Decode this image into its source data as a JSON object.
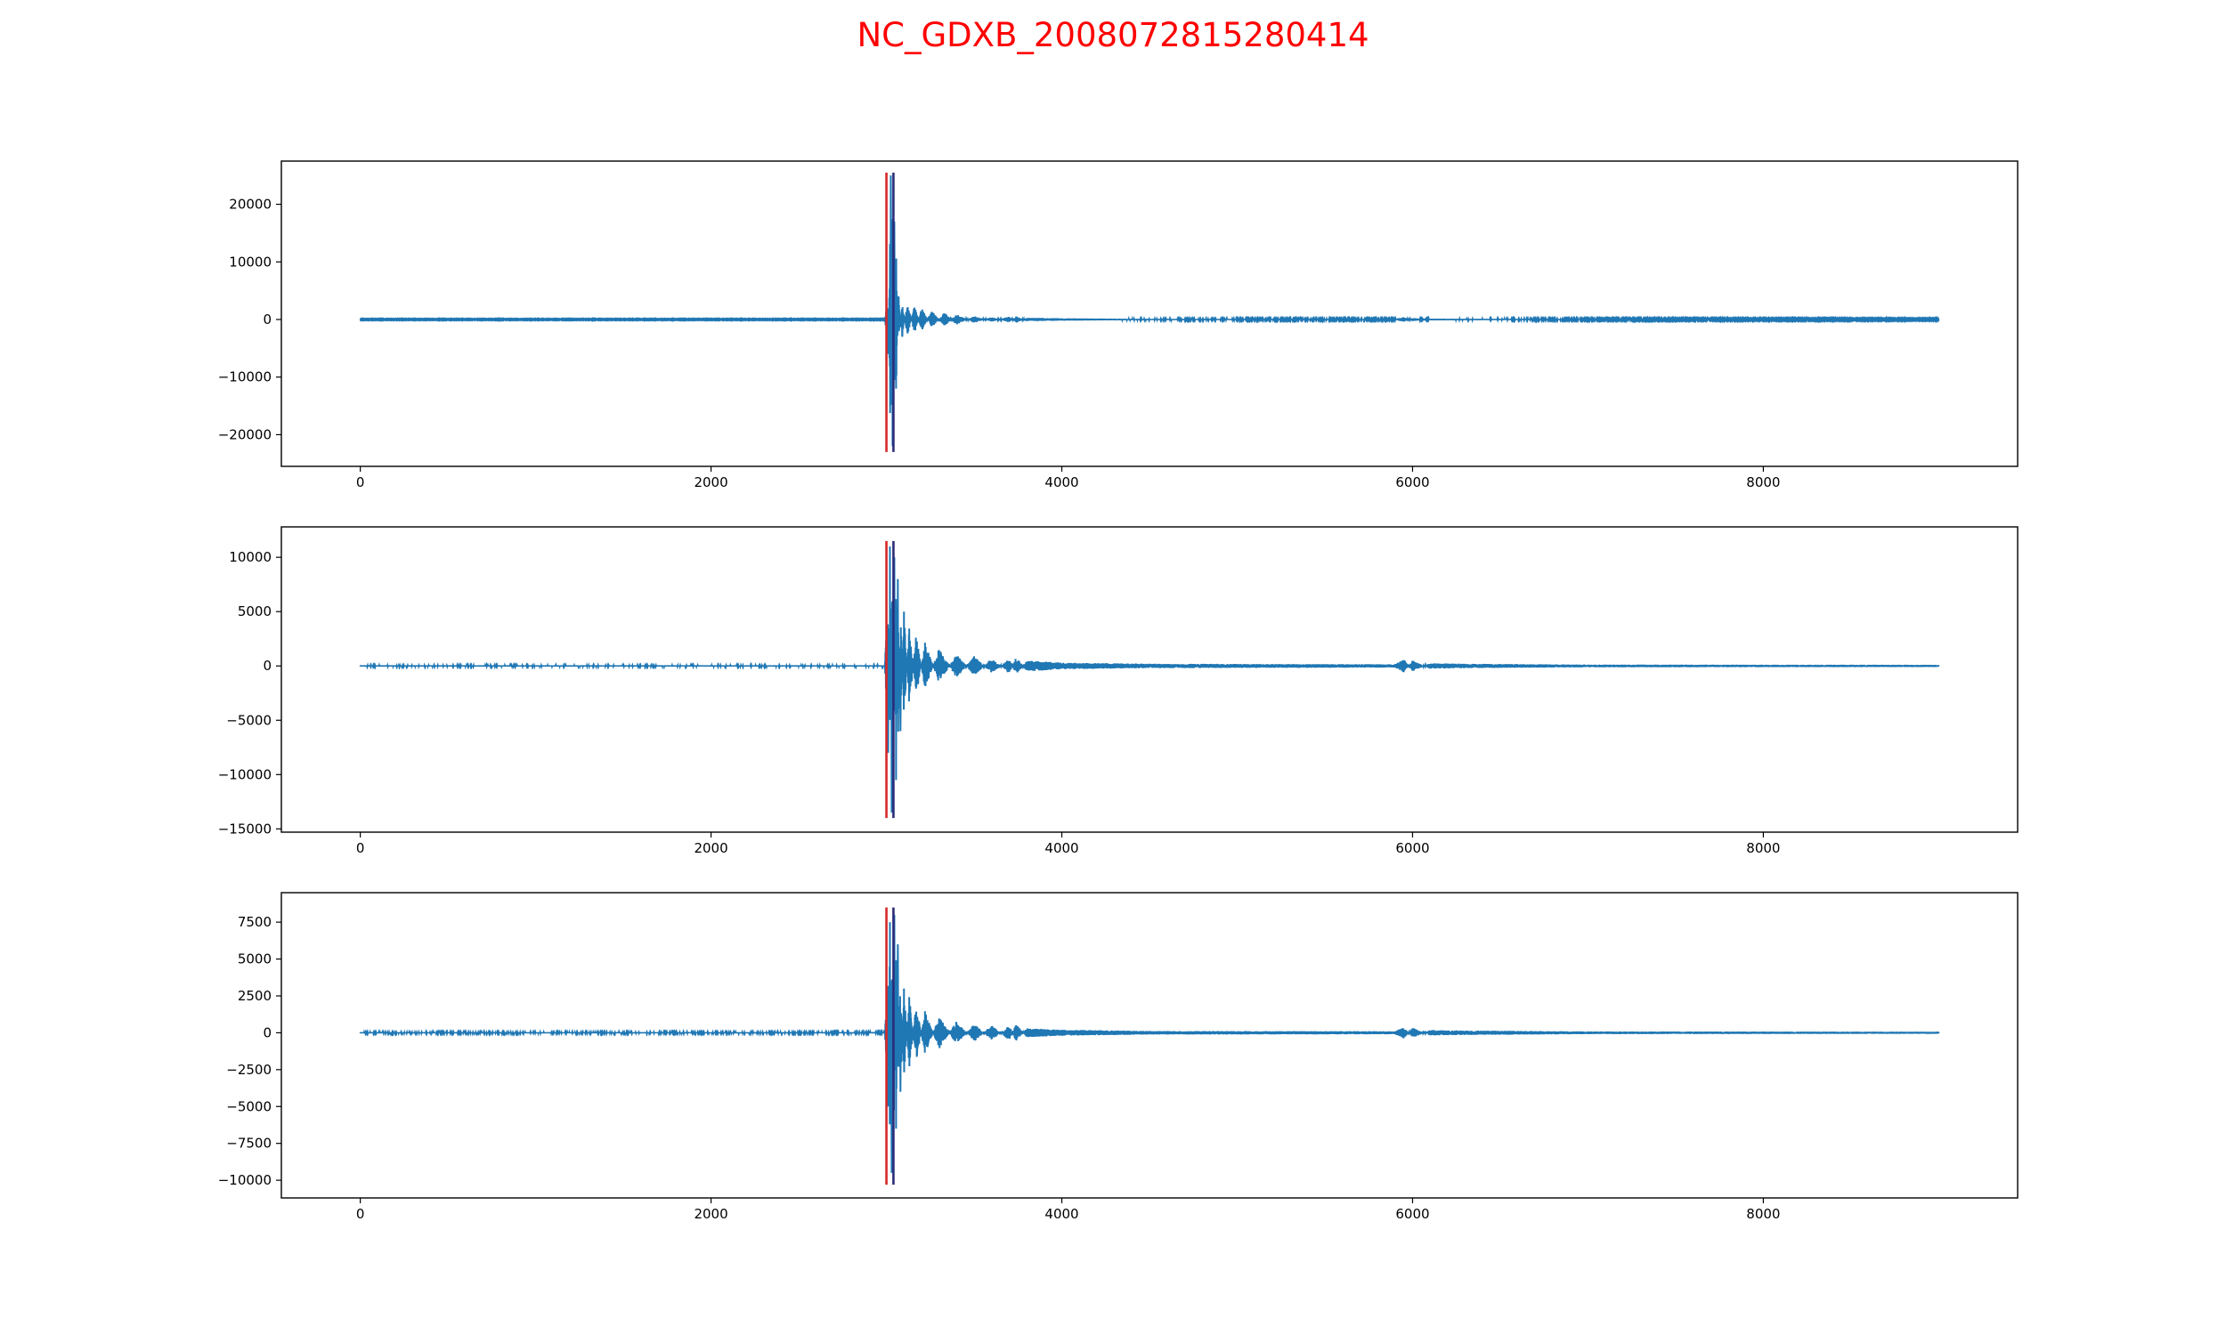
{
  "title": "NC_GDXB_2008072815280414",
  "colors": {
    "title": "#ff0000",
    "trace": "#1f77b4",
    "pick_p": "#d62728",
    "pick_s": "#2c2c7a",
    "axes": "#000000"
  },
  "chart_data": [
    {
      "type": "line",
      "name": "trace-1",
      "xlim": [
        -450,
        9450
      ],
      "ylim": [
        -25500,
        27500
      ],
      "x_ticks": [
        0,
        2000,
        4000,
        6000,
        8000
      ],
      "x_tick_labels": [
        "0",
        "2000",
        "4000",
        "6000",
        "8000"
      ],
      "y_ticks": [
        20000,
        10000,
        0,
        -10000,
        -20000
      ],
      "y_tick_labels": [
        "20000",
        "10000",
        "0",
        "−10000",
        "−20000"
      ],
      "pick_lines": [
        {
          "x": 3000,
          "y_range": [
            -23000,
            25500
          ],
          "color": "#d62728"
        },
        {
          "x": 3040,
          "y_range": [
            -23000,
            25500
          ],
          "color": "#2c2c7a"
        }
      ],
      "envelope": [
        [
          0,
          40
        ],
        [
          2990,
          40
        ],
        [
          3000,
          2000
        ],
        [
          3010,
          -6000
        ],
        [
          3025,
          25000
        ],
        [
          3035,
          -22000
        ],
        [
          3045,
          17000
        ],
        [
          3055,
          -12000
        ],
        [
          3070,
          4000
        ],
        [
          3090,
          -3000
        ],
        [
          3120,
          3000
        ],
        [
          3160,
          -2500
        ],
        [
          3200,
          2000
        ],
        [
          3260,
          -1500
        ],
        [
          3330,
          1200
        ],
        [
          3400,
          -900
        ],
        [
          3500,
          600
        ],
        [
          3600,
          -400
        ],
        [
          3700,
          500
        ],
        [
          3740,
          -600
        ],
        [
          3800,
          300
        ],
        [
          4000,
          200
        ],
        [
          4500,
          100
        ],
        [
          5900,
          80
        ],
        [
          5950,
          400
        ],
        [
          6000,
          -300
        ],
        [
          6100,
          150
        ],
        [
          6300,
          120
        ],
        [
          7000,
          80
        ],
        [
          9000,
          60
        ]
      ]
    },
    {
      "type": "line",
      "name": "trace-2",
      "xlim": [
        -450,
        9450
      ],
      "ylim": [
        -15300,
        12800
      ],
      "x_ticks": [
        0,
        2000,
        4000,
        6000,
        8000
      ],
      "x_tick_labels": [
        "0",
        "2000",
        "4000",
        "6000",
        "8000"
      ],
      "y_ticks": [
        10000,
        5000,
        0,
        -5000,
        -10000,
        -15000
      ],
      "y_tick_labels": [
        "10000",
        "5000",
        "0",
        "−5000",
        "−10000",
        "−15000"
      ],
      "pick_lines": [
        {
          "x": 3000,
          "y_range": [
            -14000,
            11500
          ],
          "color": "#d62728"
        },
        {
          "x": 3040,
          "y_range": [
            -14000,
            11500
          ],
          "color": "#2c2c7a"
        }
      ],
      "envelope": [
        [
          0,
          60
        ],
        [
          2990,
          60
        ],
        [
          3000,
          3000
        ],
        [
          3010,
          -8000
        ],
        [
          3020,
          11000
        ],
        [
          3030,
          -13500
        ],
        [
          3045,
          10000
        ],
        [
          3055,
          -10500
        ],
        [
          3065,
          8000
        ],
        [
          3080,
          -6000
        ],
        [
          3100,
          5000
        ],
        [
          3130,
          -4000
        ],
        [
          3170,
          3000
        ],
        [
          3220,
          -2200
        ],
        [
          3300,
          1600
        ],
        [
          3400,
          -1100
        ],
        [
          3500,
          900
        ],
        [
          3600,
          -700
        ],
        [
          3700,
          700
        ],
        [
          3740,
          -800
        ],
        [
          3800,
          500
        ],
        [
          4000,
          300
        ],
        [
          4500,
          200
        ],
        [
          5900,
          150
        ],
        [
          5950,
          600
        ],
        [
          6000,
          -500
        ],
        [
          6100,
          250
        ],
        [
          6300,
          200
        ],
        [
          7000,
          120
        ],
        [
          9000,
          100
        ]
      ]
    },
    {
      "type": "line",
      "name": "trace-3",
      "xlim": [
        -450,
        9450
      ],
      "ylim": [
        -11200,
        9500
      ],
      "x_ticks": [
        0,
        2000,
        4000,
        6000,
        8000
      ],
      "x_tick_labels": [
        "0",
        "2000",
        "4000",
        "6000",
        "8000"
      ],
      "y_ticks": [
        7500,
        5000,
        2500,
        0,
        -2500,
        -5000,
        -7500,
        -10000
      ],
      "y_tick_labels": [
        "7500",
        "5000",
        "2500",
        "0",
        "−2500",
        "−5000",
        "−7500",
        "−10000"
      ],
      "pick_lines": [
        {
          "x": 3000,
          "y_range": [
            -10300,
            8500
          ],
          "color": "#d62728"
        },
        {
          "x": 3040,
          "y_range": [
            -10300,
            8500
          ],
          "color": "#2c2c7a"
        }
      ],
      "envelope": [
        [
          0,
          40
        ],
        [
          2990,
          40
        ],
        [
          3000,
          2000
        ],
        [
          3010,
          -5000
        ],
        [
          3020,
          7500
        ],
        [
          3030,
          -9500
        ],
        [
          3045,
          8000
        ],
        [
          3055,
          -6500
        ],
        [
          3065,
          6000
        ],
        [
          3080,
          -4000
        ],
        [
          3100,
          3000
        ],
        [
          3130,
          -2500
        ],
        [
          3170,
          2000
        ],
        [
          3220,
          -1500
        ],
        [
          3300,
          1100
        ],
        [
          3400,
          -800
        ],
        [
          3500,
          600
        ],
        [
          3600,
          -500
        ],
        [
          3700,
          500
        ],
        [
          3740,
          -600
        ],
        [
          3800,
          300
        ],
        [
          4000,
          200
        ],
        [
          4500,
          120
        ],
        [
          5900,
          100
        ],
        [
          5950,
          400
        ],
        [
          6000,
          -350
        ],
        [
          6100,
          180
        ],
        [
          6300,
          150
        ],
        [
          7000,
          90
        ],
        [
          9000,
          70
        ]
      ]
    }
  ]
}
